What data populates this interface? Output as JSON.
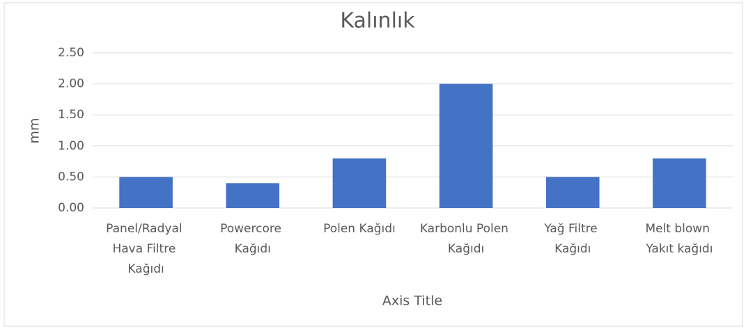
{
  "chart_data": {
    "type": "bar",
    "title": "Kalınlık",
    "categories": [
      "Panel/Radyal Hava Filtre Kağıdı",
      "Powercore Kağıdı",
      "Polen Kağıdı",
      "Karbonlu Polen Kağıdı",
      "Yağ Filtre Kağıdı",
      "Melt blown Yakıt kağıdı"
    ],
    "values": [
      0.5,
      0.4,
      0.8,
      2.0,
      0.5,
      0.8
    ],
    "color": "#4472c4",
    "ylim": [
      0,
      2.5
    ],
    "yticks": [
      {
        "value": 0,
        "label": "0.00"
      },
      {
        "value": 0.5,
        "label": "0.50"
      },
      {
        "value": 1,
        "label": "1.00"
      },
      {
        "value": 1.5,
        "label": "1.50"
      },
      {
        "value": 2,
        "label": "2.00"
      },
      {
        "value": 2.5,
        "label": "2.50"
      }
    ],
    "grid": true,
    "y_label": "mm",
    "x_label": "Axis Title"
  }
}
